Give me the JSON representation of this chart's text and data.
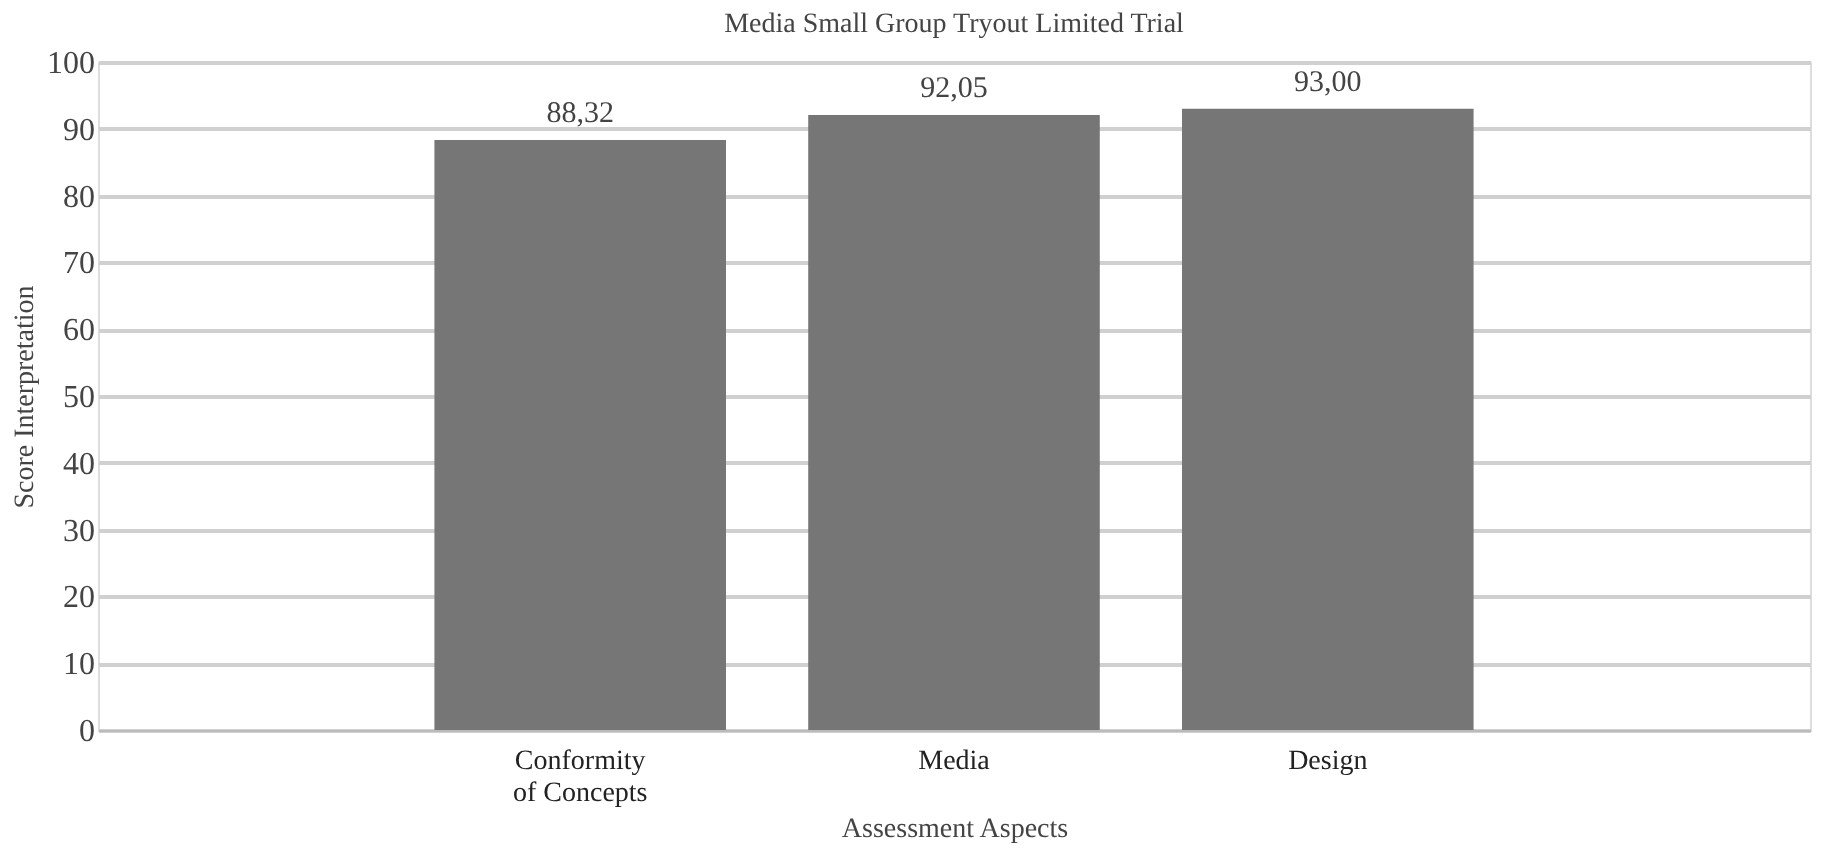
{
  "chart_data": {
    "type": "bar",
    "title": "Media Small Group Tryout Limited Trial",
    "xlabel": "Assessment Aspects",
    "ylabel": "Score Interpretation",
    "categories": [
      "Conformity of Concepts",
      "Media",
      "Design"
    ],
    "values": [
      88.32,
      92.05,
      93.0
    ],
    "value_labels": [
      "88,32",
      "92,05",
      "93,00"
    ],
    "color": "#767676",
    "ylim": [
      0,
      100
    ],
    "yticks": [
      0,
      10,
      20,
      30,
      40,
      50,
      60,
      70,
      80,
      90,
      100
    ],
    "grid": "y"
  }
}
